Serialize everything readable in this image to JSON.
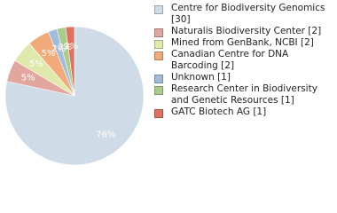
{
  "chart_data": {
    "type": "pie",
    "categories": [
      "Centre for Biodiversity Genomics [30]",
      "Naturalis Biodiversity Center [2]",
      "Mined from GenBank, NCBI [2]",
      "Canadian Centre for DNA Barcoding [2]",
      "Unknown [1]",
      "Research Center in Biodiversity and Genetic Resources [1]",
      "GATC Biotech AG [1]"
    ],
    "values": [
      76,
      5,
      5,
      5,
      2,
      2,
      2
    ],
    "value_labels": [
      "76%",
      "5%",
      "5%",
      "5%",
      "2%",
      "2%",
      "2%"
    ],
    "colors": [
      "#cfdbe7",
      "#e3a69f",
      "#dee9ab",
      "#f1ab7a",
      "#a3bbdb",
      "#a9cb8b",
      "#e1705f"
    ]
  }
}
